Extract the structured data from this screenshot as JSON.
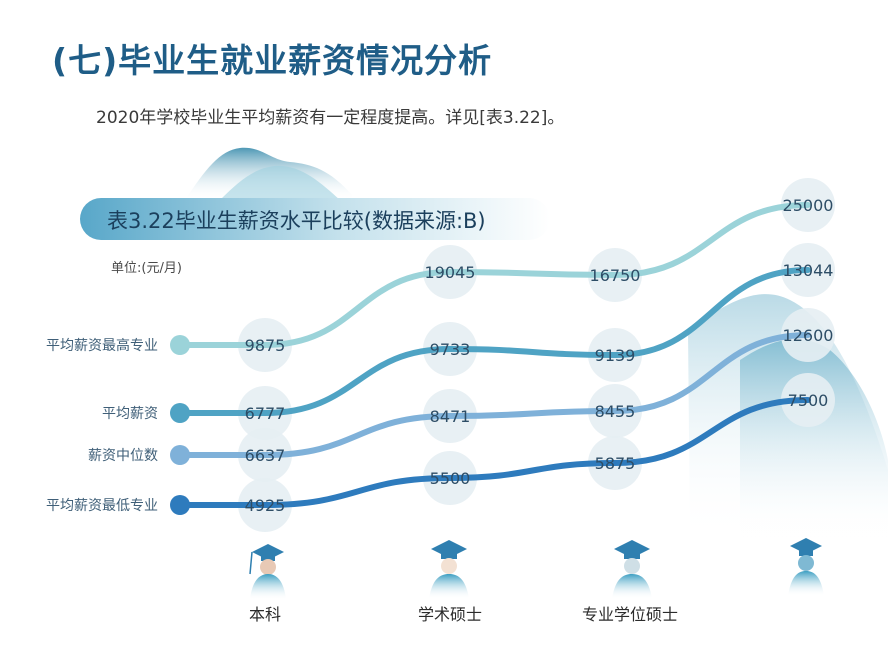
{
  "header": {
    "section_title": "(七)毕业生就业薪资情况分析",
    "intro": "2020年学校毕业生平均薪资有一定程度提高。详见[表3.22]。"
  },
  "chart_data": {
    "type": "line",
    "title": "表3.22毕业生薪资水平比较(数据来源:B)",
    "unit": "单位:(元/月)",
    "categories": [
      "本科",
      "学术硕士",
      "专业学位硕士",
      ""
    ],
    "series": [
      {
        "name": "平均薪资最高专业",
        "values": [
          9875,
          19045,
          16750,
          25000
        ],
        "color": "#9bd3d9"
      },
      {
        "name": "平均薪资",
        "values": [
          6777,
          9733,
          9139,
          13044
        ],
        "color": "#4fa3c4"
      },
      {
        "name": "薪资中位数",
        "values": [
          6637,
          8471,
          8455,
          12600
        ],
        "color": "#7fb1d9"
      },
      {
        "name": "平均薪资最低专业",
        "values": [
          4925,
          5500,
          5875,
          7500
        ],
        "color": "#2e7bbd"
      }
    ],
    "legend": "left",
    "grid": false
  },
  "icons": [
    "graduate-bachelor-icon",
    "graduate-academic-master-icon",
    "graduate-professional-master-icon",
    "graduate-doctor-icon"
  ]
}
